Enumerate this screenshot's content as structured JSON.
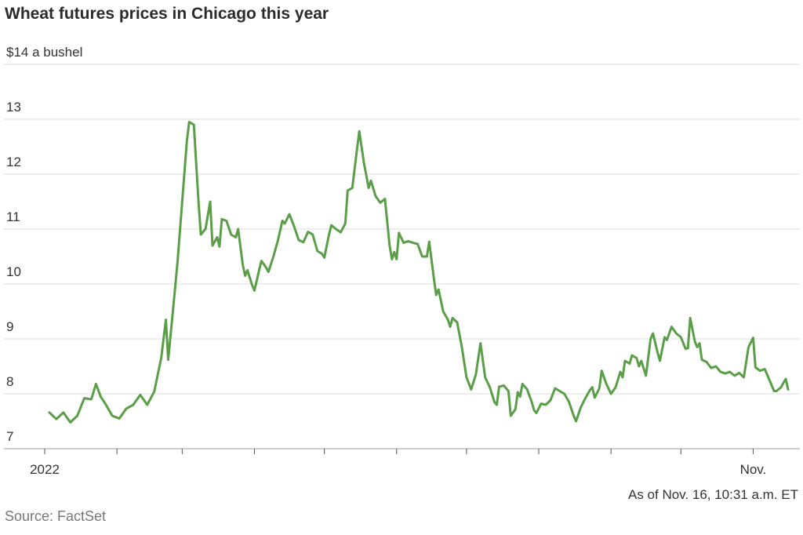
{
  "chart_data": {
    "type": "line",
    "title": "Wheat futures prices in Chicago this year",
    "note": "As of Nov. 16, 10:31 a.m. ET",
    "source": "Source: FactSet",
    "ylim": [
      7,
      14
    ],
    "yticks": [
      7,
      8,
      9,
      10,
      11,
      12,
      13,
      {
        "value": 14,
        "label": "$14 a bushel"
      }
    ],
    "xlim": [
      "2022-01-01",
      "2022-11-16"
    ],
    "xticks": [
      {
        "value": "2022-01-01",
        "label": "2022"
      },
      {
        "value": "2022-02-01",
        "label": null
      },
      {
        "value": "2022-03-01",
        "label": null
      },
      {
        "value": "2022-04-01",
        "label": null
      },
      {
        "value": "2022-05-01",
        "label": null
      },
      {
        "value": "2022-06-01",
        "label": null
      },
      {
        "value": "2022-07-01",
        "label": null
      },
      {
        "value": "2022-08-01",
        "label": null
      },
      {
        "value": "2022-09-01",
        "label": null
      },
      {
        "value": "2022-10-01",
        "label": null
      },
      {
        "value": "2022-11-01",
        "label": "Nov."
      }
    ],
    "grid": true,
    "x": [
      "2022-01-03",
      "2022-01-06",
      "2022-01-09",
      "2022-01-12",
      "2022-01-15",
      "2022-01-18",
      "2022-01-21",
      "2022-01-23",
      "2022-01-25",
      "2022-01-27",
      "2022-01-30",
      "2022-02-02",
      "2022-02-05",
      "2022-02-08",
      "2022-02-11",
      "2022-02-14",
      "2022-02-17",
      "2022-02-20",
      "2022-02-22",
      "2022-02-23",
      "2022-02-25",
      "2022-02-27",
      "2022-03-01",
      "2022-03-03",
      "2022-03-04",
      "2022-03-06",
      "2022-03-08",
      "2022-03-09",
      "2022-03-11",
      "2022-03-13",
      "2022-03-14",
      "2022-03-16",
      "2022-03-17",
      "2022-03-18",
      "2022-03-20",
      "2022-03-22",
      "2022-03-24",
      "2022-03-25",
      "2022-03-27",
      "2022-03-28",
      "2022-03-29",
      "2022-03-31",
      "2022-04-01",
      "2022-04-03",
      "2022-04-04",
      "2022-04-06",
      "2022-04-07",
      "2022-04-09",
      "2022-04-11",
      "2022-04-13",
      "2022-04-14",
      "2022-04-16",
      "2022-04-18",
      "2022-04-20",
      "2022-04-22",
      "2022-04-24",
      "2022-04-26",
      "2022-04-28",
      "2022-04-30",
      "2022-05-01",
      "2022-05-03",
      "2022-05-04",
      "2022-05-06",
      "2022-05-08",
      "2022-05-10",
      "2022-05-11",
      "2022-05-13",
      "2022-05-15",
      "2022-05-16",
      "2022-05-18",
      "2022-05-20",
      "2022-05-21",
      "2022-05-23",
      "2022-05-25",
      "2022-05-27",
      "2022-05-29",
      "2022-05-30",
      "2022-05-31",
      "2022-06-01",
      "2022-06-02",
      "2022-06-04",
      "2022-06-06",
      "2022-06-08",
      "2022-06-10",
      "2022-06-12",
      "2022-06-14",
      "2022-06-15",
      "2022-06-17",
      "2022-06-18",
      "2022-06-19",
      "2022-06-21",
      "2022-06-23",
      "2022-06-24",
      "2022-06-25",
      "2022-06-27",
      "2022-06-29",
      "2022-07-01",
      "2022-07-03",
      "2022-07-05",
      "2022-07-07",
      "2022-07-09",
      "2022-07-11",
      "2022-07-13",
      "2022-07-14",
      "2022-07-15",
      "2022-07-17",
      "2022-07-19",
      "2022-07-20",
      "2022-07-22",
      "2022-07-23",
      "2022-07-24",
      "2022-07-25",
      "2022-07-27",
      "2022-07-29",
      "2022-07-30",
      "2022-07-31",
      "2022-08-02",
      "2022-08-04",
      "2022-08-06",
      "2022-08-08",
      "2022-08-10",
      "2022-08-12",
      "2022-08-14",
      "2022-08-16",
      "2022-08-17",
      "2022-08-19",
      "2022-08-21",
      "2022-08-23",
      "2022-08-24",
      "2022-08-25",
      "2022-08-27",
      "2022-08-28",
      "2022-08-30",
      "2022-09-01",
      "2022-09-03",
      "2022-09-05",
      "2022-09-06",
      "2022-09-07",
      "2022-09-09",
      "2022-09-10",
      "2022-09-12",
      "2022-09-13",
      "2022-09-14",
      "2022-09-16",
      "2022-09-18",
      "2022-09-19",
      "2022-09-21",
      "2022-09-22",
      "2022-09-24",
      "2022-09-25",
      "2022-09-27",
      "2022-09-29",
      "2022-10-01",
      "2022-10-03",
      "2022-10-04",
      "2022-10-05",
      "2022-10-07",
      "2022-10-08",
      "2022-10-09",
      "2022-10-10",
      "2022-10-12",
      "2022-10-14",
      "2022-10-16",
      "2022-10-18",
      "2022-10-20",
      "2022-10-22",
      "2022-10-24",
      "2022-10-26",
      "2022-10-28",
      "2022-10-30",
      "2022-11-01",
      "2022-11-02",
      "2022-11-04",
      "2022-11-06",
      "2022-11-08",
      "2022-11-10",
      "2022-11-11",
      "2022-11-13",
      "2022-11-14",
      "2022-11-15",
      "2022-11-16"
    ],
    "series": [
      {
        "name": "Wheat futures",
        "color": "#5a9e48",
        "values": [
          7.66,
          7.54,
          7.66,
          7.48,
          7.6,
          7.92,
          7.9,
          8.18,
          7.95,
          7.82,
          7.6,
          7.55,
          7.73,
          7.8,
          7.98,
          7.8,
          8.04,
          8.65,
          9.35,
          8.62,
          9.5,
          10.4,
          11.5,
          12.6,
          12.95,
          12.9,
          11.5,
          10.9,
          11.0,
          11.5,
          10.7,
          10.85,
          10.68,
          11.18,
          11.15,
          10.9,
          10.85,
          11.0,
          10.35,
          10.15,
          10.25,
          9.98,
          9.88,
          10.25,
          10.42,
          10.3,
          10.22,
          10.48,
          10.78,
          11.15,
          11.1,
          11.27,
          11.05,
          10.8,
          10.76,
          10.95,
          10.9,
          10.6,
          10.55,
          10.48,
          10.9,
          11.07,
          11.0,
          10.94,
          11.1,
          11.7,
          11.75,
          12.45,
          12.78,
          12.2,
          11.75,
          11.88,
          11.6,
          11.48,
          11.55,
          10.7,
          10.45,
          10.58,
          10.45,
          10.93,
          10.75,
          10.78,
          10.75,
          10.73,
          10.5,
          10.5,
          10.77,
          10.1,
          9.8,
          9.9,
          9.5,
          9.35,
          9.22,
          9.38,
          9.3,
          8.85,
          8.3,
          8.08,
          8.35,
          8.92,
          8.3,
          8.12,
          7.85,
          7.8,
          8.13,
          8.15,
          8.05,
          7.6,
          7.72,
          8.03,
          7.95,
          8.18,
          8.08,
          7.85,
          7.7,
          7.65,
          7.82,
          7.8,
          7.88,
          8.1,
          8.05,
          8.0,
          7.85,
          7.6,
          7.5,
          7.75,
          7.92,
          8.07,
          8.12,
          7.93,
          8.1,
          8.42,
          8.18,
          8.0,
          8.12,
          8.4,
          8.3,
          8.6,
          8.55,
          8.7,
          8.65,
          8.5,
          8.6,
          8.33,
          9.0,
          9.1,
          8.75,
          8.6,
          9.03,
          8.98,
          9.22,
          9.1,
          9.03,
          8.82,
          8.83,
          9.38,
          8.95,
          8.85,
          8.92,
          8.62,
          8.58,
          8.47,
          8.5,
          8.4,
          8.37,
          8.4,
          8.33,
          8.38,
          8.3,
          8.85,
          9.02,
          8.48,
          8.42,
          8.45,
          8.25,
          8.05,
          8.05,
          8.12,
          8.2,
          8.27,
          8.08
        ]
      }
    ]
  }
}
